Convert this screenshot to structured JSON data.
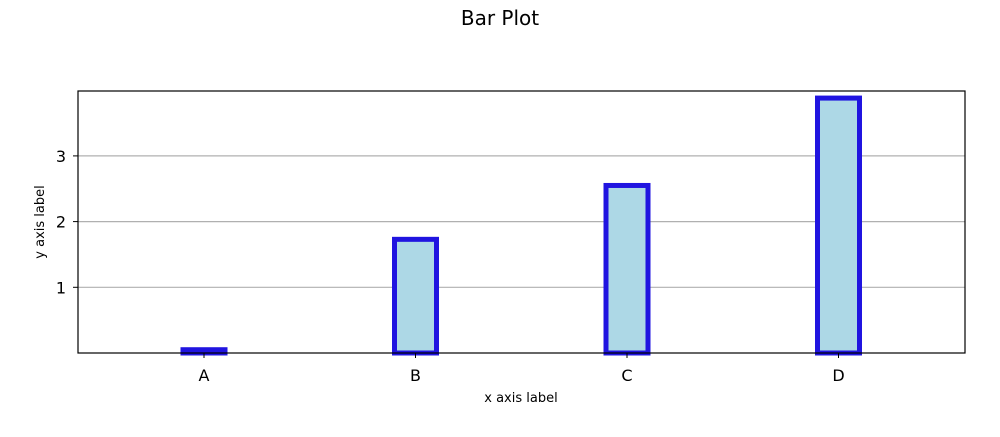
{
  "chart_data": {
    "type": "bar",
    "title": "Bar Plot",
    "xlabel": "x axis label",
    "ylabel": "y axis label",
    "categories": [
      "A",
      "B",
      "C",
      "D"
    ],
    "values": [
      0.05,
      1.73,
      2.55,
      3.88
    ],
    "ylim": [
      0,
      4
    ],
    "yticks": [
      1,
      2,
      3
    ],
    "yticks_labels": [
      "1",
      "2",
      "3"
    ],
    "grid": "y-axis only",
    "colors": {
      "bar_fill": "#add8e6",
      "bar_edge": "#2014e0",
      "grid": "#b0b0b0",
      "frame": "#000000"
    }
  }
}
